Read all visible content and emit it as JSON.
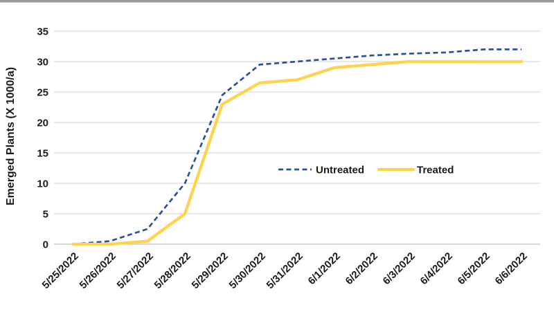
{
  "page": {
    "background_color": "#ffffff",
    "top_border_color": "#9b9b9b"
  },
  "chart_data": {
    "type": "line",
    "title": "",
    "xlabel": "",
    "ylabel": "Emerged Plants (X 1000/a)",
    "ylim": [
      0,
      35
    ],
    "yticks": [
      0,
      5,
      10,
      15,
      20,
      25,
      30,
      35
    ],
    "grid": true,
    "gridline_color": "#d9d9d9",
    "zeroline_color": "#bfbfbf",
    "legend_position": "inside-center-right",
    "categories": [
      "5/25/2022",
      "5/26/2022",
      "5/27/2022",
      "5/28/2022",
      "5/29/2022",
      "5/30/2022",
      "5/31/2022",
      "6/1/2022",
      "6/2/2022",
      "6/3/2022",
      "6/4/2022",
      "6/5/2022",
      "6/6/2022"
    ],
    "series": [
      {
        "name": "Untreated",
        "color": "#2c5197",
        "style": "dashed",
        "values": [
          0,
          0.5,
          2.5,
          10,
          24.5,
          29.5,
          30,
          30.5,
          31,
          31.3,
          31.5,
          32,
          32
        ]
      },
      {
        "name": "Treated",
        "color": "#ffd34d",
        "style": "solid",
        "values": [
          0,
          0,
          0.5,
          5,
          23,
          26.5,
          27,
          29,
          29.5,
          30,
          30,
          30,
          30
        ]
      }
    ]
  }
}
